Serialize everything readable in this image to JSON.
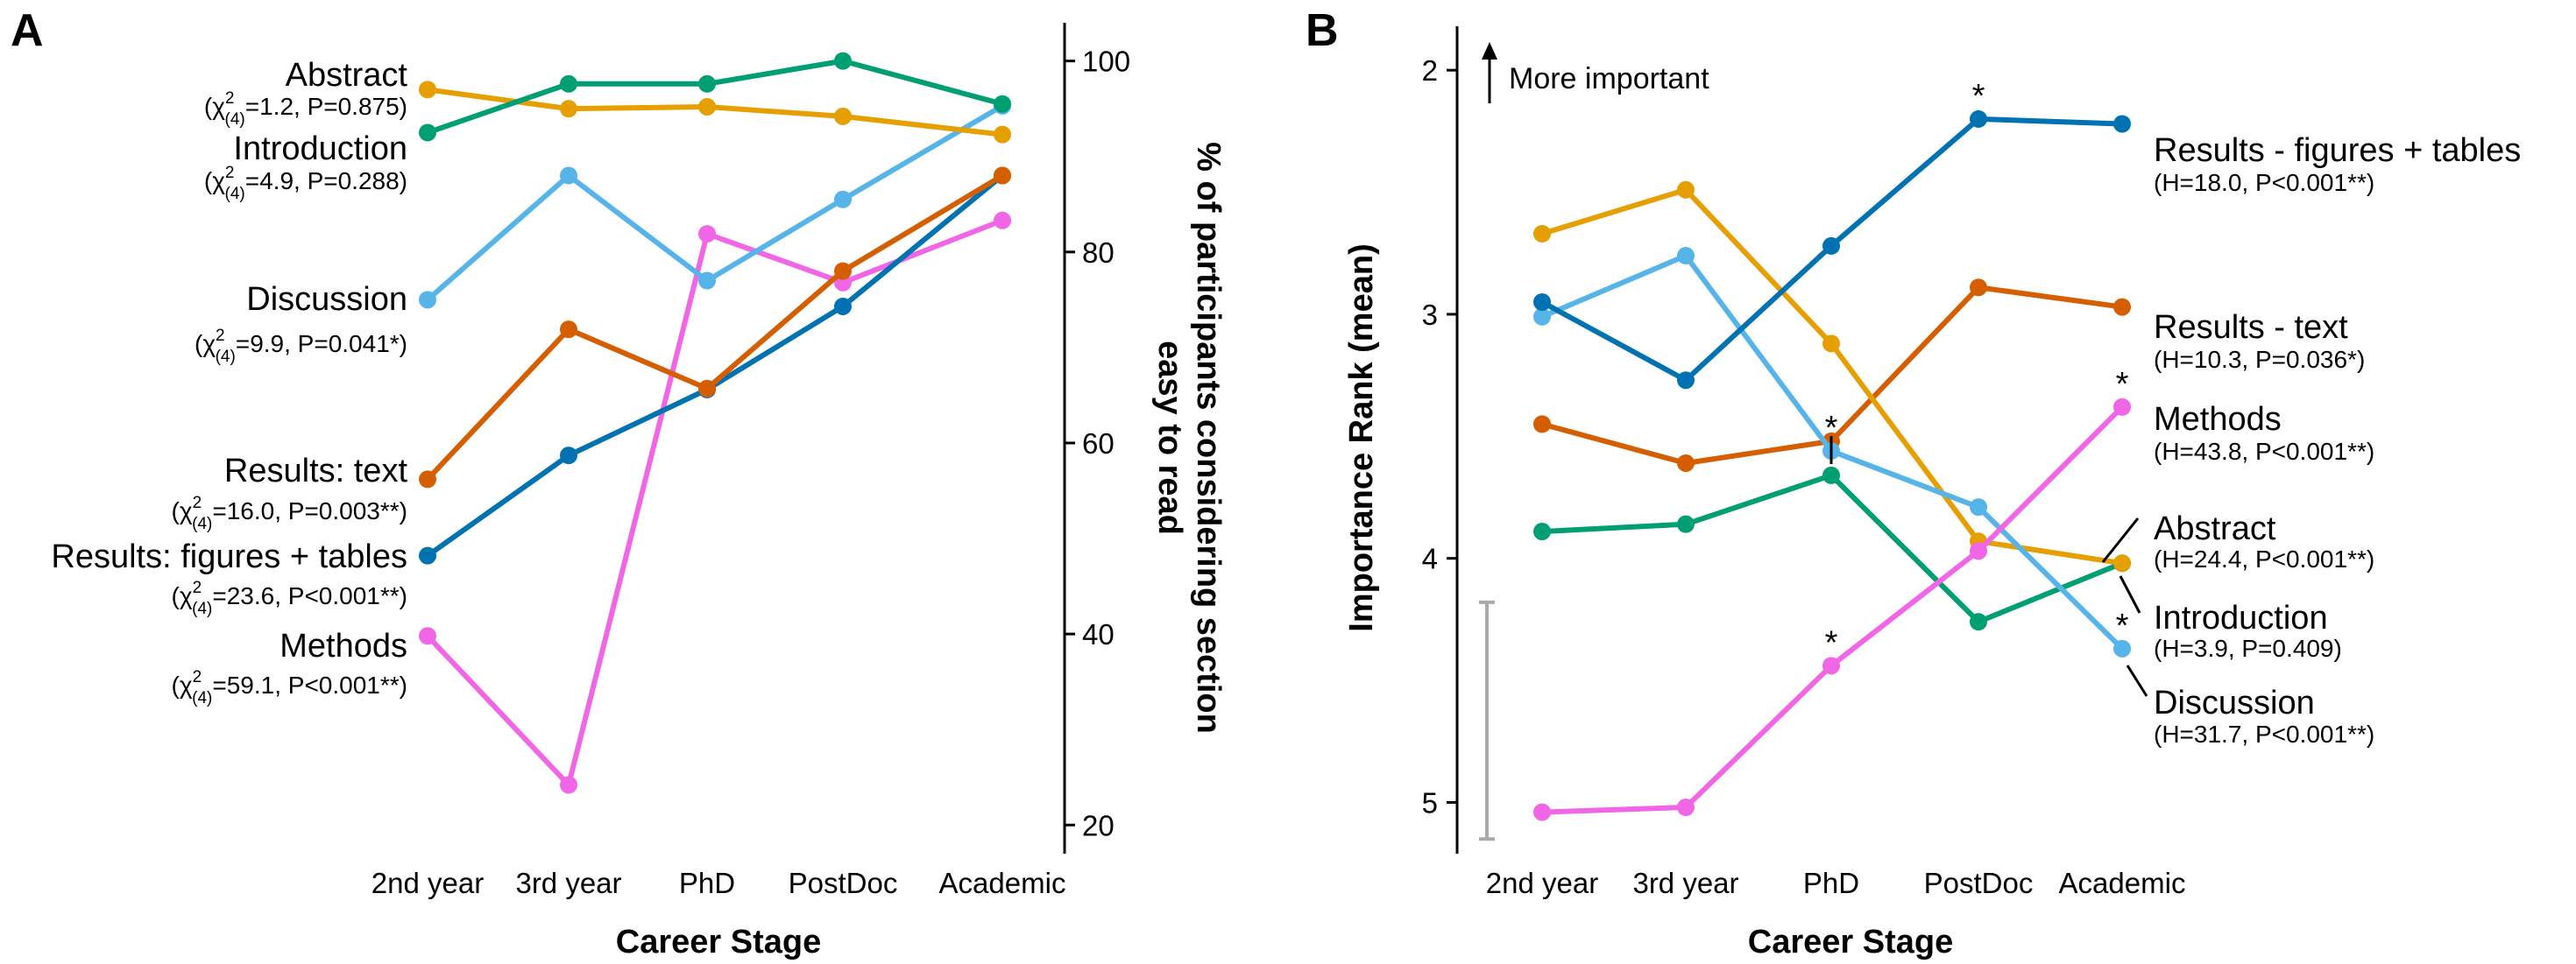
{
  "chart_data": [
    {
      "panel": "A",
      "type": "line",
      "x": [
        "2nd year",
        "3rd year",
        "PhD",
        "PostDoc",
        "Academic"
      ],
      "xlabel": "Career Stage",
      "ylabel": "% of participants considering section easy to read",
      "ylim": [
        17,
        104
      ],
      "yticks": [
        20,
        40,
        60,
        80,
        100
      ],
      "y_axis_side": "right",
      "grid": false,
      "legend": "direct labels at left",
      "series": [
        {
          "name": "Abstract",
          "stat": "=1.2, P=0.875",
          "color": "#E69F00",
          "values": [
            97.0,
            95.0,
            95.2,
            94.2,
            92.3
          ]
        },
        {
          "name": "Introduction",
          "stat": "=4.9, P=0.288",
          "color": "#009E73",
          "values": [
            92.5,
            97.6,
            97.6,
            100.0,
            95.5
          ]
        },
        {
          "name": "Discussion",
          "stat": "=9.9, P=0.041*",
          "color": "#56B4E9",
          "values": [
            75.0,
            88.0,
            77.0,
            85.5,
            95.3
          ]
        },
        {
          "name": "Results: text",
          "stat": "=16.0, P=0.003**",
          "color": "#D55E00",
          "values": [
            56.2,
            71.9,
            65.7,
            78.0,
            88.0
          ]
        },
        {
          "name": "Results: figures + tables",
          "stat": "=23.6, P<0.001**",
          "color": "#0072B2",
          "values": [
            48.2,
            58.7,
            65.6,
            74.3,
            88.0
          ]
        },
        {
          "name": "Methods",
          "stat": "=59.1, P<0.001**",
          "color": "#F066E6",
          "values": [
            39.8,
            24.2,
            81.9,
            76.8,
            83.3
          ]
        }
      ]
    },
    {
      "panel": "B",
      "type": "line",
      "x": [
        "2nd year",
        "3rd year",
        "PhD",
        "PostDoc",
        "Academic"
      ],
      "xlabel": "Career Stage",
      "ylabel": "Importance Rank (mean)",
      "ylim": [
        5.21,
        1.82
      ],
      "yticks": [
        2,
        3,
        4,
        5
      ],
      "y_inverted": true,
      "grid": false,
      "annotation": "More important",
      "legend": "direct labels at right",
      "series": [
        {
          "name": "Results - figures + tables",
          "stat": "(H=18.0, P<0.001**)",
          "color": "#0072B2",
          "values": [
            2.95,
            3.27,
            2.72,
            2.2,
            2.22
          ],
          "stars": [
            "",
            "",
            "",
            "*",
            ""
          ]
        },
        {
          "name": "Results - text",
          "stat": "(H=10.3, P=0.036*)",
          "color": "#D55E00",
          "values": [
            3.45,
            3.61,
            3.52,
            2.89,
            2.97
          ],
          "stars": [
            "",
            "",
            "",
            "",
            ""
          ]
        },
        {
          "name": "Methods",
          "stat": "(H=43.8, P<0.001**)",
          "color": "#F066E6",
          "values": [
            5.04,
            5.02,
            4.44,
            3.97,
            3.38
          ],
          "stars": [
            "",
            "",
            "*",
            "",
            "*"
          ]
        },
        {
          "name": "Abstract",
          "stat": "(H=24.4, P<0.001**)",
          "color": "#E69F00",
          "values": [
            2.67,
            2.49,
            3.12,
            3.93,
            4.02
          ],
          "stars": [
            "",
            "",
            "",
            "",
            ""
          ]
        },
        {
          "name": "Introduction",
          "stat": "(H=3.9, P=0.409)",
          "color": "#009E73",
          "values": [
            3.89,
            3.86,
            3.66,
            4.26,
            4.02
          ],
          "stars": [
            "",
            "",
            "",
            "",
            ""
          ]
        },
        {
          "name": "Discussion",
          "stat": "(H=31.7, P<0.001**)",
          "color": "#56B4E9",
          "values": [
            3.01,
            2.76,
            3.56,
            3.79,
            4.37
          ],
          "stars": [
            "",
            "",
            "*",
            "",
            "*"
          ]
        }
      ],
      "error_bar": {
        "color": "#AAAAAA",
        "low": 4.18,
        "high": 5.15
      }
    }
  ],
  "labels": {
    "panel_a_letter": "A",
    "panel_b_letter": "B",
    "chi_symbol": "χ",
    "chi_sup": "2",
    "chi_sub": "(4)",
    "arrow_text": "More important",
    "star": "*"
  }
}
